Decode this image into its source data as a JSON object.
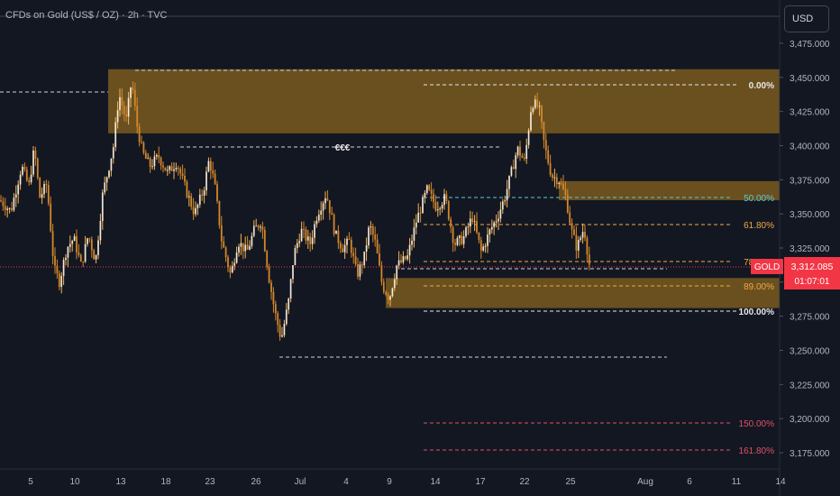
{
  "header": {
    "title": "CFDs on Gold (US$ / OZ) · 2h · TVC",
    "currency": "USD"
  },
  "colors": {
    "background": "#131722",
    "candle": "#f0a844",
    "zone": "#7a5a1e",
    "fib_white": "#e8e8e8",
    "fib_cyan": "#5fc8d8",
    "fib_orange": "#f0a844",
    "fib_red": "#e05066",
    "price_badge": "#f23645"
  },
  "chart_data": {
    "type": "candlestick",
    "symbol": "GOLD",
    "timeframe": "2h",
    "last_price": "3,312.085",
    "countdown": "01:07:01",
    "ylim": [
      3150,
      3500
    ],
    "y_ticks": [
      "3,475.000",
      "3,450.000",
      "3,425.000",
      "3,400.000",
      "3,375.000",
      "3,350.000",
      "3,325.000",
      "3,300.000",
      "3,275.000",
      "3,250.000",
      "3,225.000",
      "3,200.000",
      "3,175.000"
    ],
    "x_ticks": [
      "5",
      "10",
      "13",
      "18",
      "23",
      "26",
      "Jul",
      "4",
      "9",
      "14",
      "17",
      "22",
      "25",
      "Aug",
      "6",
      "11",
      "14"
    ],
    "annotations": [
      "€€€"
    ],
    "fib_levels": [
      {
        "label": "0.00%",
        "price": 3444.5
      },
      {
        "label": "50.00%",
        "price": 3362
      },
      {
        "label": "61.80%",
        "price": 3342.5
      },
      {
        "label": "78.60%",
        "price": 3314.8
      },
      {
        "label": "89.00%",
        "price": 3297.5
      },
      {
        "label": "100.00%",
        "price": 3279
      },
      {
        "label": "150.00%",
        "price": 3196.5
      },
      {
        "label": "161.80%",
        "price": 3177
      }
    ],
    "zones": [
      {
        "top": 3456,
        "bottom": 3409
      },
      {
        "top": 3374,
        "bottom": 3360
      },
      {
        "top": 3303,
        "bottom": 3281
      }
    ],
    "path": [
      {
        "x": 0,
        "p": 3360
      },
      {
        "x": 12,
        "p": 3352
      },
      {
        "x": 24,
        "p": 3385
      },
      {
        "x": 32,
        "p": 3370
      },
      {
        "x": 38,
        "p": 3398
      },
      {
        "x": 44,
        "p": 3362
      },
      {
        "x": 52,
        "p": 3372
      },
      {
        "x": 60,
        "p": 3310
      },
      {
        "x": 66,
        "p": 3300
      },
      {
        "x": 74,
        "p": 3325
      },
      {
        "x": 82,
        "p": 3332
      },
      {
        "x": 90,
        "p": 3312
      },
      {
        "x": 98,
        "p": 3335
      },
      {
        "x": 106,
        "p": 3315
      },
      {
        "x": 114,
        "p": 3365
      },
      {
        "x": 120,
        "p": 3382
      },
      {
        "x": 126,
        "p": 3400
      },
      {
        "x": 132,
        "p": 3438
      },
      {
        "x": 140,
        "p": 3418
      },
      {
        "x": 146,
        "p": 3448
      },
      {
        "x": 152,
        "p": 3415
      },
      {
        "x": 158,
        "p": 3395
      },
      {
        "x": 166,
        "p": 3385
      },
      {
        "x": 176,
        "p": 3392
      },
      {
        "x": 186,
        "p": 3380
      },
      {
        "x": 196,
        "p": 3388
      },
      {
        "x": 206,
        "p": 3368
      },
      {
        "x": 216,
        "p": 3350
      },
      {
        "x": 226,
        "p": 3368
      },
      {
        "x": 232,
        "p": 3390
      },
      {
        "x": 238,
        "p": 3372
      },
      {
        "x": 246,
        "p": 3330
      },
      {
        "x": 256,
        "p": 3305
      },
      {
        "x": 264,
        "p": 3330
      },
      {
        "x": 274,
        "p": 3322
      },
      {
        "x": 282,
        "p": 3338
      },
      {
        "x": 290,
        "p": 3345
      },
      {
        "x": 298,
        "p": 3305
      },
      {
        "x": 305,
        "p": 3278
      },
      {
        "x": 312,
        "p": 3258
      },
      {
        "x": 320,
        "p": 3285
      },
      {
        "x": 326,
        "p": 3320
      },
      {
        "x": 334,
        "p": 3338
      },
      {
        "x": 344,
        "p": 3328
      },
      {
        "x": 352,
        "p": 3350
      },
      {
        "x": 362,
        "p": 3365
      },
      {
        "x": 372,
        "p": 3335
      },
      {
        "x": 380,
        "p": 3325
      },
      {
        "x": 388,
        "p": 3330
      },
      {
        "x": 396,
        "p": 3305
      },
      {
        "x": 404,
        "p": 3318
      },
      {
        "x": 410,
        "p": 3342
      },
      {
        "x": 416,
        "p": 3330
      },
      {
        "x": 424,
        "p": 3298
      },
      {
        "x": 432,
        "p": 3288
      },
      {
        "x": 440,
        "p": 3312
      },
      {
        "x": 452,
        "p": 3318
      },
      {
        "x": 462,
        "p": 3345
      },
      {
        "x": 474,
        "p": 3368
      },
      {
        "x": 484,
        "p": 3355
      },
      {
        "x": 494,
        "p": 3362
      },
      {
        "x": 504,
        "p": 3328
      },
      {
        "x": 514,
        "p": 3332
      },
      {
        "x": 524,
        "p": 3348
      },
      {
        "x": 534,
        "p": 3322
      },
      {
        "x": 544,
        "p": 3338
      },
      {
        "x": 552,
        "p": 3348
      },
      {
        "x": 560,
        "p": 3362
      },
      {
        "x": 568,
        "p": 3382
      },
      {
        "x": 574,
        "p": 3398
      },
      {
        "x": 582,
        "p": 3388
      },
      {
        "x": 590,
        "p": 3432
      },
      {
        "x": 598,
        "p": 3428
      },
      {
        "x": 604,
        "p": 3400
      },
      {
        "x": 612,
        "p": 3378
      },
      {
        "x": 620,
        "p": 3375
      },
      {
        "x": 628,
        "p": 3362
      },
      {
        "x": 634,
        "p": 3338
      },
      {
        "x": 640,
        "p": 3325
      },
      {
        "x": 648,
        "p": 3340
      },
      {
        "x": 654,
        "p": 3312
      }
    ]
  }
}
